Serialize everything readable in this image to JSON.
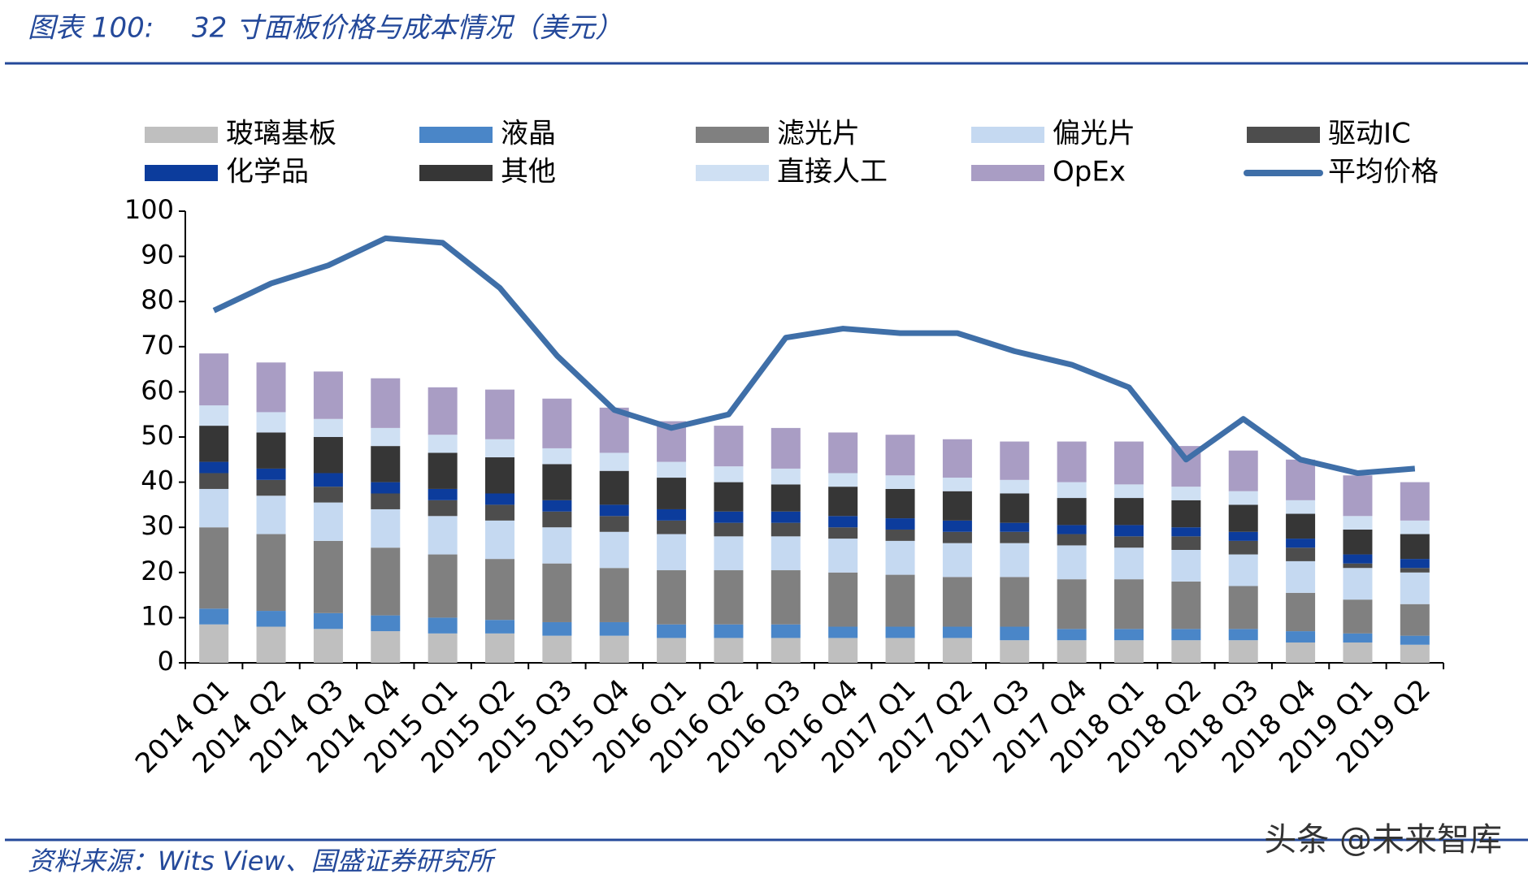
{
  "header": {
    "label": "图表 100:",
    "title": "32 寸面板价格与成本情况（美元）"
  },
  "chart_data": {
    "type": "bar",
    "stacked": true,
    "categories": [
      "2014 Q1",
      "2014 Q2",
      "2014 Q3",
      "2014 Q4",
      "2015 Q1",
      "2015 Q2",
      "2015 Q3",
      "2015 Q4",
      "2016 Q1",
      "2016 Q2",
      "2016 Q3",
      "2016 Q4",
      "2017 Q1",
      "2017 Q2",
      "2017 Q3",
      "2017 Q4",
      "2018 Q1",
      "2018 Q2",
      "2018 Q3",
      "2018 Q4",
      "2019 Q1",
      "2019 Q2"
    ],
    "series": [
      {
        "name": "玻璃基板",
        "color": "#bfbfbf",
        "values": [
          8.5,
          8,
          7.5,
          7,
          6.5,
          6.5,
          6,
          6,
          5.5,
          5.5,
          5.5,
          5.5,
          5.5,
          5.5,
          5,
          5,
          5,
          5,
          5,
          4.5,
          4.5,
          4
        ]
      },
      {
        "name": "液晶",
        "color": "#4a86c8",
        "values": [
          3.5,
          3.5,
          3.5,
          3.5,
          3.5,
          3,
          3,
          3,
          3,
          3,
          3,
          2.5,
          2.5,
          2.5,
          3,
          2.5,
          2.5,
          2.5,
          2.5,
          2.5,
          2,
          2
        ]
      },
      {
        "name": "滤光片",
        "color": "#808080",
        "values": [
          18,
          17,
          16,
          15,
          14,
          13.5,
          13,
          12,
          12,
          12,
          12,
          12,
          11.5,
          11,
          11,
          11,
          11,
          10.5,
          9.5,
          8.5,
          7.5,
          7
        ]
      },
      {
        "name": "偏光片",
        "color": "#c5d9f1",
        "values": [
          8.5,
          8.5,
          8.5,
          8.5,
          8.5,
          8.5,
          8,
          8,
          8,
          7.5,
          7.5,
          7.5,
          7.5,
          7.5,
          7.5,
          7.5,
          7,
          7,
          7,
          7,
          7,
          7
        ]
      },
      {
        "name": "驱动IC",
        "color": "#4d4d4d",
        "values": [
          3.5,
          3.5,
          3.5,
          3.5,
          3.5,
          3.5,
          3.5,
          3.5,
          3,
          3,
          3,
          2.5,
          2.5,
          2.5,
          2.5,
          2.5,
          2.5,
          3,
          3,
          3,
          1,
          1
        ]
      },
      {
        "name": "化学品",
        "color": "#0c3c9c",
        "values": [
          2.5,
          2.5,
          3,
          2.5,
          2.5,
          2.5,
          2.5,
          2.5,
          2.5,
          2.5,
          2.5,
          2.5,
          2.5,
          2.5,
          2,
          2,
          2.5,
          2,
          2,
          2,
          2,
          2
        ]
      },
      {
        "name": "其他",
        "color": "#363636",
        "values": [
          8,
          8,
          8,
          8,
          8,
          8,
          8,
          7.5,
          7,
          6.5,
          6,
          6.5,
          6.5,
          6.5,
          6.5,
          6,
          6,
          6,
          6,
          5.5,
          5.5,
          5.5
        ]
      },
      {
        "name": "直接人工",
        "color": "#cfe0f3",
        "values": [
          4.5,
          4.5,
          4,
          4,
          4,
          4,
          3.5,
          4,
          3.5,
          3.5,
          3.5,
          3,
          3,
          3,
          3,
          3.5,
          3,
          3,
          3,
          3,
          3,
          3
        ]
      },
      {
        "name": "OpEx",
        "color": "#a99dc4",
        "values": [
          11.5,
          11,
          10.5,
          11,
          10.5,
          11,
          11,
          10,
          9,
          9,
          9,
          9,
          9,
          8.5,
          8.5,
          9,
          9.5,
          9,
          9,
          9,
          9,
          8.5
        ]
      },
      {
        "name": "平均价格",
        "color": "#3f6fa8",
        "type": "line",
        "values": [
          78,
          84,
          88,
          94,
          93,
          83,
          68,
          56,
          52,
          55,
          72,
          74,
          73,
          73,
          69,
          66,
          61,
          45,
          54,
          45,
          42,
          43
        ]
      }
    ],
    "ylim": [
      0,
      100
    ],
    "yticks": [
      0,
      10,
      20,
      30,
      40,
      50,
      60,
      70,
      80,
      90,
      100
    ]
  },
  "footer": {
    "source": "资料来源：Wits View、国盛证券研究所",
    "watermark": "头条 @未来智库"
  }
}
